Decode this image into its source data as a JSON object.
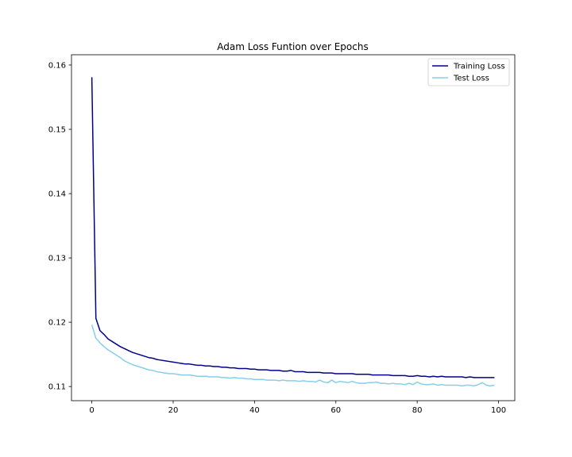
{
  "chart_data": {
    "type": "line",
    "title": "Adam Loss Funtion over Epochs",
    "xlabel": "",
    "ylabel": "",
    "xlim": [
      -5,
      104
    ],
    "ylim": [
      0.1078,
      0.1616
    ],
    "xticks": [
      0,
      20,
      40,
      60,
      80,
      100
    ],
    "xtick_labels": [
      "0",
      "20",
      "40",
      "60",
      "80",
      "100"
    ],
    "yticks": [
      0.11,
      0.12,
      0.13,
      0.14,
      0.15,
      0.16
    ],
    "ytick_labels": [
      "0.11",
      "0.12",
      "0.13",
      "0.14",
      "0.15",
      "0.16"
    ],
    "grid": false,
    "legend_position": "top-right",
    "series": [
      {
        "name": "Training Loss",
        "color": "#00008b",
        "x": [
          0,
          1,
          2,
          3,
          4,
          5,
          6,
          7,
          8,
          9,
          10,
          11,
          12,
          13,
          14,
          15,
          16,
          17,
          18,
          19,
          20,
          21,
          22,
          23,
          24,
          25,
          26,
          27,
          28,
          29,
          30,
          31,
          32,
          33,
          34,
          35,
          36,
          37,
          38,
          39,
          40,
          41,
          42,
          43,
          44,
          45,
          46,
          47,
          48,
          49,
          50,
          51,
          52,
          53,
          54,
          55,
          56,
          57,
          58,
          59,
          60,
          61,
          62,
          63,
          64,
          65,
          66,
          67,
          68,
          69,
          70,
          71,
          72,
          73,
          74,
          75,
          76,
          77,
          78,
          79,
          80,
          81,
          82,
          83,
          84,
          85,
          86,
          87,
          88,
          89,
          90,
          91,
          92,
          93,
          94,
          95,
          96,
          97,
          98,
          99
        ],
        "values": [
          0.1581,
          0.1206,
          0.1187,
          0.1181,
          0.1174,
          0.117,
          0.1166,
          0.1162,
          0.1159,
          0.1156,
          0.1153,
          0.1151,
          0.1149,
          0.1147,
          0.1145,
          0.1144,
          0.1142,
          0.1141,
          0.114,
          0.1139,
          0.1138,
          0.1137,
          0.1136,
          0.1135,
          0.1135,
          0.1134,
          0.1133,
          0.1133,
          0.1132,
          0.1132,
          0.1131,
          0.1131,
          0.113,
          0.113,
          0.1129,
          0.1129,
          0.1128,
          0.1128,
          0.1128,
          0.1127,
          0.1127,
          0.1126,
          0.1126,
          0.1126,
          0.1125,
          0.1125,
          0.1125,
          0.1124,
          0.1124,
          0.1125,
          0.1123,
          0.1123,
          0.1123,
          0.1122,
          0.1122,
          0.1122,
          0.1122,
          0.1121,
          0.1121,
          0.1121,
          0.112,
          0.112,
          0.112,
          0.112,
          0.112,
          0.1119,
          0.1119,
          0.1119,
          0.1119,
          0.1118,
          0.1118,
          0.1118,
          0.1118,
          0.1118,
          0.1117,
          0.1117,
          0.1117,
          0.1117,
          0.1116,
          0.1116,
          0.1117,
          0.1116,
          0.1116,
          0.1115,
          0.1116,
          0.1115,
          0.1116,
          0.1115,
          0.1115,
          0.1115,
          0.1115,
          0.1115,
          0.1114,
          0.1115,
          0.1114,
          0.1114,
          0.1114,
          0.1114,
          0.1114,
          0.1114
        ]
      },
      {
        "name": "Test Loss",
        "color": "#87ceeb",
        "x": [
          0,
          1,
          2,
          3,
          4,
          5,
          6,
          7,
          8,
          9,
          10,
          11,
          12,
          13,
          14,
          15,
          16,
          17,
          18,
          19,
          20,
          21,
          22,
          23,
          24,
          25,
          26,
          27,
          28,
          29,
          30,
          31,
          32,
          33,
          34,
          35,
          36,
          37,
          38,
          39,
          40,
          41,
          42,
          43,
          44,
          45,
          46,
          47,
          48,
          49,
          50,
          51,
          52,
          53,
          54,
          55,
          56,
          57,
          58,
          59,
          60,
          61,
          62,
          63,
          64,
          65,
          66,
          67,
          68,
          69,
          70,
          71,
          72,
          73,
          74,
          75,
          76,
          77,
          78,
          79,
          80,
          81,
          82,
          83,
          84,
          85,
          86,
          87,
          88,
          89,
          90,
          91,
          92,
          93,
          94,
          95,
          96,
          97,
          98,
          99
        ],
        "values": [
          0.1196,
          0.1175,
          0.1168,
          0.1162,
          0.1157,
          0.1153,
          0.1149,
          0.1145,
          0.114,
          0.1137,
          0.1134,
          0.1132,
          0.113,
          0.1128,
          0.1126,
          0.1125,
          0.1123,
          0.1122,
          0.1121,
          0.112,
          0.112,
          0.1119,
          0.1118,
          0.1118,
          0.1118,
          0.1117,
          0.1116,
          0.1116,
          0.1116,
          0.1115,
          0.1115,
          0.1115,
          0.1114,
          0.1114,
          0.1113,
          0.1114,
          0.1113,
          0.1113,
          0.1112,
          0.1112,
          0.1111,
          0.1111,
          0.1111,
          0.111,
          0.111,
          0.111,
          0.1109,
          0.111,
          0.1109,
          0.1109,
          0.1109,
          0.1108,
          0.1109,
          0.1108,
          0.1108,
          0.1107,
          0.111,
          0.1107,
          0.1106,
          0.111,
          0.1106,
          0.1108,
          0.1107,
          0.1106,
          0.1108,
          0.1106,
          0.1105,
          0.1105,
          0.1106,
          0.1106,
          0.1107,
          0.1105,
          0.1105,
          0.1104,
          0.1105,
          0.1104,
          0.1104,
          0.1103,
          0.1105,
          0.1103,
          0.1107,
          0.1104,
          0.1103,
          0.1103,
          0.1104,
          0.1102,
          0.1103,
          0.1102,
          0.1102,
          0.1102,
          0.1102,
          0.1101,
          0.1102,
          0.1102,
          0.1101,
          0.1103,
          0.1106,
          0.1102,
          0.1101,
          0.1102
        ]
      }
    ]
  }
}
